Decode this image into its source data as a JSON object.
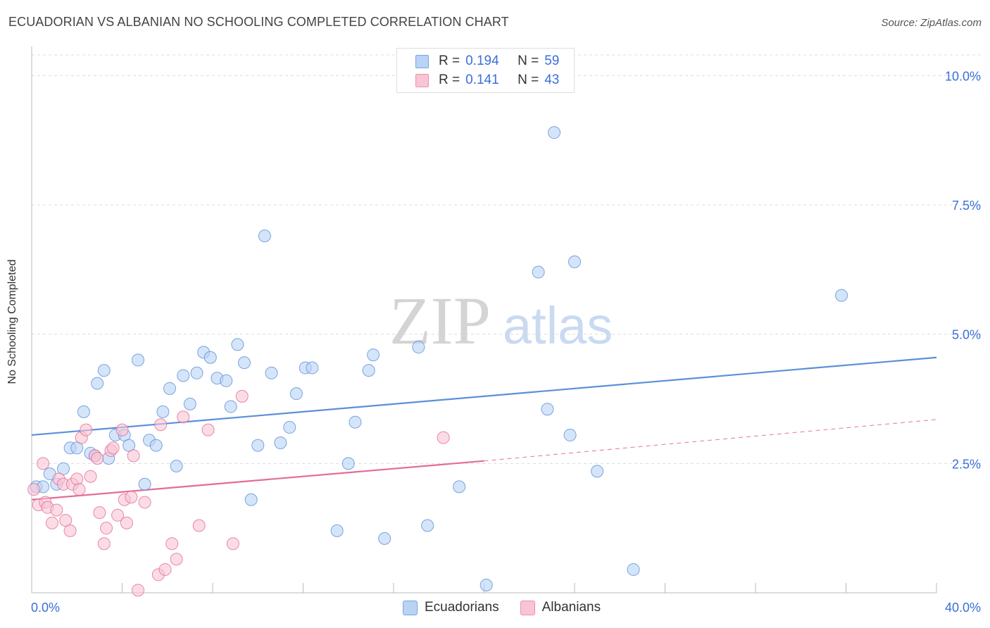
{
  "header": {
    "title": "ECUADORIAN VS ALBANIAN NO SCHOOLING COMPLETED CORRELATION CHART",
    "source": "Source: ZipAtlas.com"
  },
  "watermark": {
    "part1": "ZIP",
    "part2": "atlas"
  },
  "legend": {
    "r_label": "R =",
    "n_label": "N =",
    "rows": [
      {
        "r": "0.194",
        "n": "59",
        "fill": "#b9d3f5",
        "stroke": "#7aa5e0"
      },
      {
        "r": "0.141",
        "n": "43",
        "fill": "#f9c4d4",
        "stroke": "#ee8fae"
      }
    ]
  },
  "bottom_legend": [
    {
      "label": "Ecuadorians",
      "fill": "#b9d3f5",
      "stroke": "#7aa5e0"
    },
    {
      "label": "Albanians",
      "fill": "#f9c4d4",
      "stroke": "#ee8fae"
    }
  ],
  "chart_data": {
    "type": "scatter",
    "title": "ECUADORIAN VS ALBANIAN NO SCHOOLING COMPLETED CORRELATION CHART",
    "xlabel": "",
    "ylabel": "No Schooling Completed",
    "xlim": [
      0,
      40
    ],
    "ylim": [
      0,
      10.4
    ],
    "x_tick_labels": [
      {
        "value": 0,
        "label": "0.0%"
      },
      {
        "value": 40,
        "label": "40.0%"
      }
    ],
    "y_tick_labels": [
      {
        "value": 2.5,
        "label": "2.5%"
      },
      {
        "value": 5.0,
        "label": "5.0%"
      },
      {
        "value": 7.5,
        "label": "7.5%"
      },
      {
        "value": 10.0,
        "label": "10.0%"
      }
    ],
    "grid": "horizontal dashed",
    "legend_position": "top-center",
    "series": [
      {
        "name": "Ecuadorians",
        "color": "#5b8fd9",
        "fill": "#b9d3f5",
        "trend": {
          "x": [
            0,
            40
          ],
          "y": [
            3.05,
            4.55
          ],
          "style": "solid"
        },
        "points": [
          [
            0.2,
            2.05
          ],
          [
            0.5,
            2.05
          ],
          [
            0.8,
            2.3
          ],
          [
            1.1,
            2.1
          ],
          [
            1.4,
            2.4
          ],
          [
            1.7,
            2.8
          ],
          [
            2.0,
            2.8
          ],
          [
            2.3,
            3.5
          ],
          [
            2.6,
            2.7
          ],
          [
            2.8,
            2.65
          ],
          [
            2.9,
            4.05
          ],
          [
            3.2,
            4.3
          ],
          [
            3.4,
            2.6
          ],
          [
            3.7,
            3.05
          ],
          [
            4.1,
            3.05
          ],
          [
            4.3,
            2.85
          ],
          [
            4.7,
            4.5
          ],
          [
            5.0,
            2.1
          ],
          [
            5.2,
            2.95
          ],
          [
            5.5,
            2.85
          ],
          [
            5.8,
            3.5
          ],
          [
            6.1,
            3.95
          ],
          [
            6.4,
            2.45
          ],
          [
            6.7,
            4.2
          ],
          [
            7.0,
            3.65
          ],
          [
            7.3,
            4.25
          ],
          [
            7.6,
            4.65
          ],
          [
            7.9,
            4.55
          ],
          [
            8.2,
            4.15
          ],
          [
            8.6,
            4.1
          ],
          [
            8.8,
            3.6
          ],
          [
            9.1,
            4.8
          ],
          [
            9.4,
            4.45
          ],
          [
            9.7,
            1.8
          ],
          [
            10.0,
            2.85
          ],
          [
            10.3,
            6.9
          ],
          [
            10.6,
            4.25
          ],
          [
            11.0,
            2.9
          ],
          [
            11.4,
            3.2
          ],
          [
            11.7,
            3.85
          ],
          [
            12.1,
            4.35
          ],
          [
            12.4,
            4.35
          ],
          [
            13.5,
            1.2
          ],
          [
            14.0,
            2.5
          ],
          [
            14.3,
            3.3
          ],
          [
            14.9,
            4.3
          ],
          [
            15.1,
            4.6
          ],
          [
            15.6,
            1.05
          ],
          [
            17.1,
            4.75
          ],
          [
            17.5,
            1.3
          ],
          [
            18.9,
            2.05
          ],
          [
            20.1,
            0.15
          ],
          [
            22.4,
            6.2
          ],
          [
            22.8,
            3.55
          ],
          [
            23.1,
            8.9
          ],
          [
            23.8,
            3.05
          ],
          [
            24.0,
            6.4
          ],
          [
            25.0,
            2.35
          ],
          [
            26.6,
            0.45
          ],
          [
            35.8,
            5.75
          ]
        ]
      },
      {
        "name": "Albanians",
        "color": "#e46c96",
        "fill": "#f9c4d4",
        "trend": {
          "x": [
            0,
            20
          ],
          "y": [
            1.8,
            2.55
          ],
          "style": "solid",
          "dashed_extension_to": [
            40,
            3.35
          ]
        },
        "points": [
          [
            0.1,
            2.0
          ],
          [
            0.3,
            1.7
          ],
          [
            0.5,
            2.5
          ],
          [
            0.6,
            1.75
          ],
          [
            0.7,
            1.65
          ],
          [
            0.9,
            1.35
          ],
          [
            1.1,
            1.6
          ],
          [
            1.2,
            2.2
          ],
          [
            1.4,
            2.1
          ],
          [
            1.5,
            1.4
          ],
          [
            1.7,
            1.2
          ],
          [
            1.8,
            2.1
          ],
          [
            2.0,
            2.2
          ],
          [
            2.1,
            2.0
          ],
          [
            2.2,
            3.0
          ],
          [
            2.4,
            3.15
          ],
          [
            2.6,
            2.25
          ],
          [
            2.8,
            2.65
          ],
          [
            2.9,
            2.6
          ],
          [
            3.0,
            1.55
          ],
          [
            3.2,
            0.95
          ],
          [
            3.3,
            1.25
          ],
          [
            3.5,
            2.75
          ],
          [
            3.6,
            2.8
          ],
          [
            3.8,
            1.5
          ],
          [
            4.0,
            3.15
          ],
          [
            4.1,
            1.8
          ],
          [
            4.2,
            1.35
          ],
          [
            4.4,
            1.85
          ],
          [
            4.5,
            2.65
          ],
          [
            4.7,
            0.05
          ],
          [
            5.0,
            1.75
          ],
          [
            5.6,
            0.35
          ],
          [
            5.7,
            3.25
          ],
          [
            5.9,
            0.45
          ],
          [
            6.2,
            0.95
          ],
          [
            6.4,
            0.65
          ],
          [
            6.7,
            3.4
          ],
          [
            7.4,
            1.3
          ],
          [
            7.8,
            3.15
          ],
          [
            8.9,
            0.95
          ],
          [
            9.3,
            3.8
          ],
          [
            18.2,
            3.0
          ]
        ]
      }
    ]
  }
}
